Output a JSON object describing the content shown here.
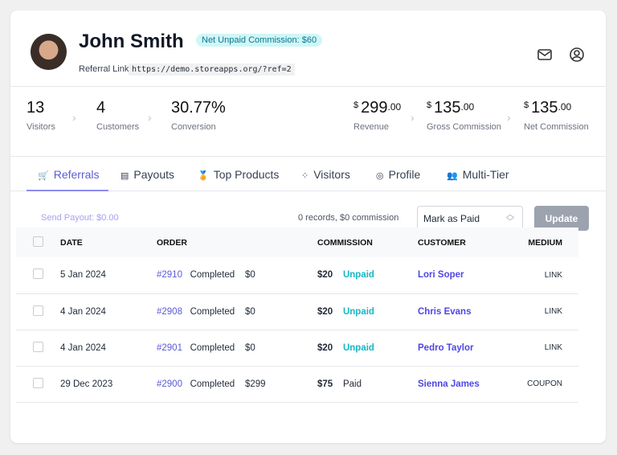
{
  "profile": {
    "name": "John Smith",
    "badge": "Net Unpaid Commission: $60",
    "referral_label": "Referral Link:",
    "referral_link": "https://demo.storeapps.org/?ref=2",
    "icons": [
      "mail-icon",
      "user-circle-icon"
    ]
  },
  "stats": {
    "visitors": {
      "value": "13",
      "label": "Visitors"
    },
    "customers": {
      "value": "4",
      "label": "Customers"
    },
    "conversion": {
      "value": "30.77%",
      "label": "Conversion"
    },
    "revenue": {
      "cur": "$",
      "value": "299",
      "dec": ".00",
      "label": "Revenue"
    },
    "gross": {
      "cur": "$",
      "value": "135",
      "dec": ".00",
      "label": "Gross Commission"
    },
    "net": {
      "cur": "$",
      "value": "135",
      "dec": ".00",
      "label": "Net Commission"
    }
  },
  "tabs": [
    "Referrals",
    "Payouts",
    "Top Products",
    "Visitors",
    "Profile",
    "Multi-Tier"
  ],
  "active_tab": "Referrals",
  "toolbar": {
    "send_payout": "Send Payout: $0.00",
    "records": "0 records, $0 commission",
    "action": "Mark as Paid",
    "update": "Update"
  },
  "table": {
    "headers": [
      "DATE",
      "ORDER",
      "COMMISSION",
      "CUSTOMER",
      "MEDIUM"
    ],
    "rows": [
      {
        "date": "5 Jan 2024",
        "order": "#2910",
        "status": "Completed",
        "amount": "$0",
        "commission": "$20",
        "pay_status": "Unpaid",
        "customer": "Lori Soper",
        "medium": "LINK"
      },
      {
        "date": "4 Jan 2024",
        "order": "#2908",
        "status": "Completed",
        "amount": "$0",
        "commission": "$20",
        "pay_status": "Unpaid",
        "customer": "Chris Evans",
        "medium": "LINK"
      },
      {
        "date": "4 Jan 2024",
        "order": "#2901",
        "status": "Completed",
        "amount": "$0",
        "commission": "$20",
        "pay_status": "Unpaid",
        "customer": "Pedro Taylor",
        "medium": "LINK"
      },
      {
        "date": "29 Dec 2023",
        "order": "#2900",
        "status": "Completed",
        "amount": "$299",
        "commission": "$75",
        "pay_status": "Paid",
        "customer": "Sienna James",
        "medium": "COUPON"
      }
    ]
  },
  "colors": {
    "accent": "#5b5bd6",
    "unpaid": "#14b8c4",
    "badge_bg": "#cff7f7"
  }
}
